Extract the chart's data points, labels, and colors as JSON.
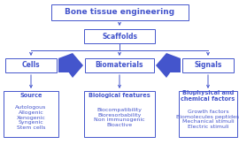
{
  "bg_color": "#ffffff",
  "box_color": "#4455cc",
  "box_face": "#ffffff",
  "title_text": "Bone tissue engineering",
  "scaffolds_text": "Scaffolds",
  "cells_text": "Cells",
  "bio_text": "Biomaterials",
  "signals_text": "Signals",
  "cells_sub_bold": "Source",
  "cells_sub_rest": "Autologous\nAllogenic\nXenogenic\nSyngenic\nStem cells",
  "bio_sub_bold": "Biological features",
  "bio_sub_rest": "Biocompatibility\nBioresorbability\nNon immunogenic\nBioactive",
  "signals_sub_bold": "Biophysical and\nchemical factors",
  "signals_sub_rest": "Growth factors\nBiomolecules peptides\nMechanical stimuli\nElectric stimuli",
  "title_fs": 6.5,
  "label_fs": 5.5,
  "sub_bold_fs": 4.8,
  "sub_rest_fs": 4.5
}
